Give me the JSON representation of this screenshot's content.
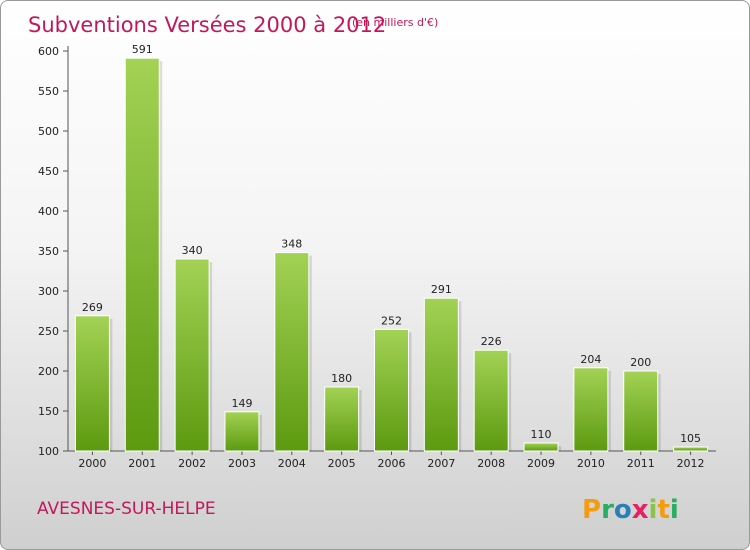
{
  "chart_data": {
    "type": "bar",
    "title": "Subventions Versées 2000 à 2012",
    "subtitle": "(en milliers d'€)",
    "categories": [
      "2000",
      "2001",
      "2002",
      "2003",
      "2004",
      "2005",
      "2006",
      "2007",
      "2008",
      "2009",
      "2010",
      "2011",
      "2012"
    ],
    "values": [
      269,
      591,
      340,
      149,
      348,
      180,
      252,
      291,
      226,
      110,
      204,
      200,
      105
    ],
    "ylim": [
      100,
      600
    ],
    "yticks": [
      100,
      150,
      200,
      250,
      300,
      350,
      400,
      450,
      500,
      550,
      600
    ],
    "grid": false,
    "colors": {
      "bar_top": "#9ccc4a",
      "bar_bottom": "#5f9e12",
      "accent": "#c2185b"
    }
  },
  "footer": {
    "commune": "AVESNES-SUR-HELPE",
    "logo_letters": [
      "P",
      "r",
      "o",
      "x",
      "i",
      "t",
      "i"
    ],
    "logo_colors": [
      "#f39c12",
      "#27ae60",
      "#2980b9",
      "#e91e63",
      "#8bc34a",
      "#f39c12",
      "#27ae60"
    ]
  }
}
